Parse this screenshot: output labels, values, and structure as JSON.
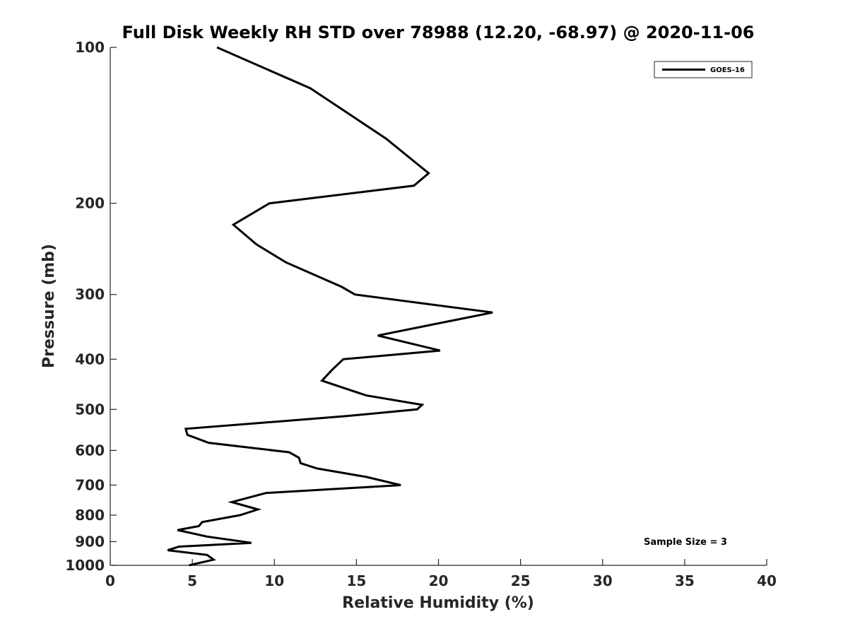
{
  "chart_data": {
    "type": "line",
    "title": "Full Disk Weekly RH STD over 78988 (12.20, -68.97) @ 2020-11-06",
    "xlabel": "Relative Humidity (%)",
    "ylabel": "Pressure (mb)",
    "xlim": [
      0,
      40
    ],
    "ylim": [
      100,
      1000
    ],
    "yscale": "log",
    "y_reversed": true,
    "xticks": [
      0,
      5,
      10,
      15,
      20,
      25,
      30,
      35,
      40
    ],
    "yticks": [
      100,
      200,
      300,
      400,
      500,
      600,
      700,
      800,
      900,
      1000
    ],
    "grid": false,
    "legend_position": "top-right",
    "annotation": "Sample Size = 3",
    "series": [
      {
        "name": "GOES-16",
        "color": "#000000",
        "x": [
          6.5,
          12.2,
          16.8,
          19.4,
          18.5,
          9.7,
          7.5,
          8.9,
          10.7,
          14.1,
          14.9,
          23.3,
          16.3,
          20.1,
          14.2,
          13.5,
          12.9,
          15.6,
          19.0,
          18.7,
          14.4,
          4.6,
          4.7,
          6.0,
          10.9,
          11.5,
          11.6,
          12.6,
          15.6,
          17.7,
          9.5,
          7.4,
          9.0,
          7.9,
          5.6,
          5.4,
          4.1,
          5.9,
          8.6,
          4.2,
          3.5,
          5.9,
          6.3,
          4.8
        ],
        "y": [
          100,
          120,
          150,
          175,
          185,
          200,
          220,
          240,
          260,
          290,
          300,
          325,
          360,
          385,
          400,
          420,
          440,
          470,
          490,
          500,
          515,
          545,
          560,
          580,
          605,
          620,
          635,
          650,
          675,
          700,
          725,
          755,
          780,
          800,
          825,
          840,
          855,
          880,
          905,
          920,
          935,
          955,
          975,
          1000
        ]
      }
    ]
  }
}
